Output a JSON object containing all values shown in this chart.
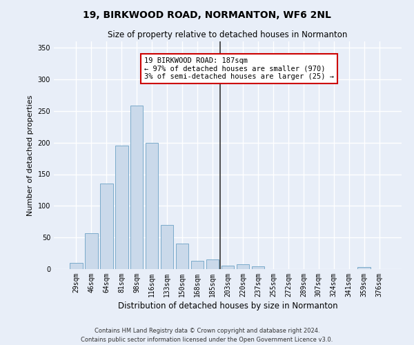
{
  "title": "19, BIRKWOOD ROAD, NORMANTON, WF6 2NL",
  "subtitle": "Size of property relative to detached houses in Normanton",
  "xlabel": "Distribution of detached houses by size in Normanton",
  "ylabel": "Number of detached properties",
  "bar_color": "#cad9ea",
  "bar_edge_color": "#7aaaca",
  "background_color": "#e8eef8",
  "grid_color": "#ffffff",
  "categories": [
    "29sqm",
    "46sqm",
    "64sqm",
    "81sqm",
    "98sqm",
    "116sqm",
    "133sqm",
    "150sqm",
    "168sqm",
    "185sqm",
    "203sqm",
    "220sqm",
    "237sqm",
    "255sqm",
    "272sqm",
    "289sqm",
    "307sqm",
    "324sqm",
    "341sqm",
    "359sqm",
    "376sqm"
  ],
  "values": [
    10,
    57,
    135,
    195,
    258,
    200,
    70,
    40,
    13,
    15,
    6,
    8,
    4,
    0,
    0,
    0,
    0,
    0,
    0,
    3,
    0
  ],
  "ylim": [
    0,
    360
  ],
  "yticks": [
    0,
    50,
    100,
    150,
    200,
    250,
    300,
    350
  ],
  "property_label": "19 BIRKWOOD ROAD: 187sqm",
  "annotation_line1": "← 97% of detached houses are smaller (970)",
  "annotation_line2": "3% of semi-detached houses are larger (25) →",
  "vline_color": "#333333",
  "annotation_box_edge": "#cc0000",
  "footnote1": "Contains HM Land Registry data © Crown copyright and database right 2024.",
  "footnote2": "Contains public sector information licensed under the Open Government Licence v3.0."
}
